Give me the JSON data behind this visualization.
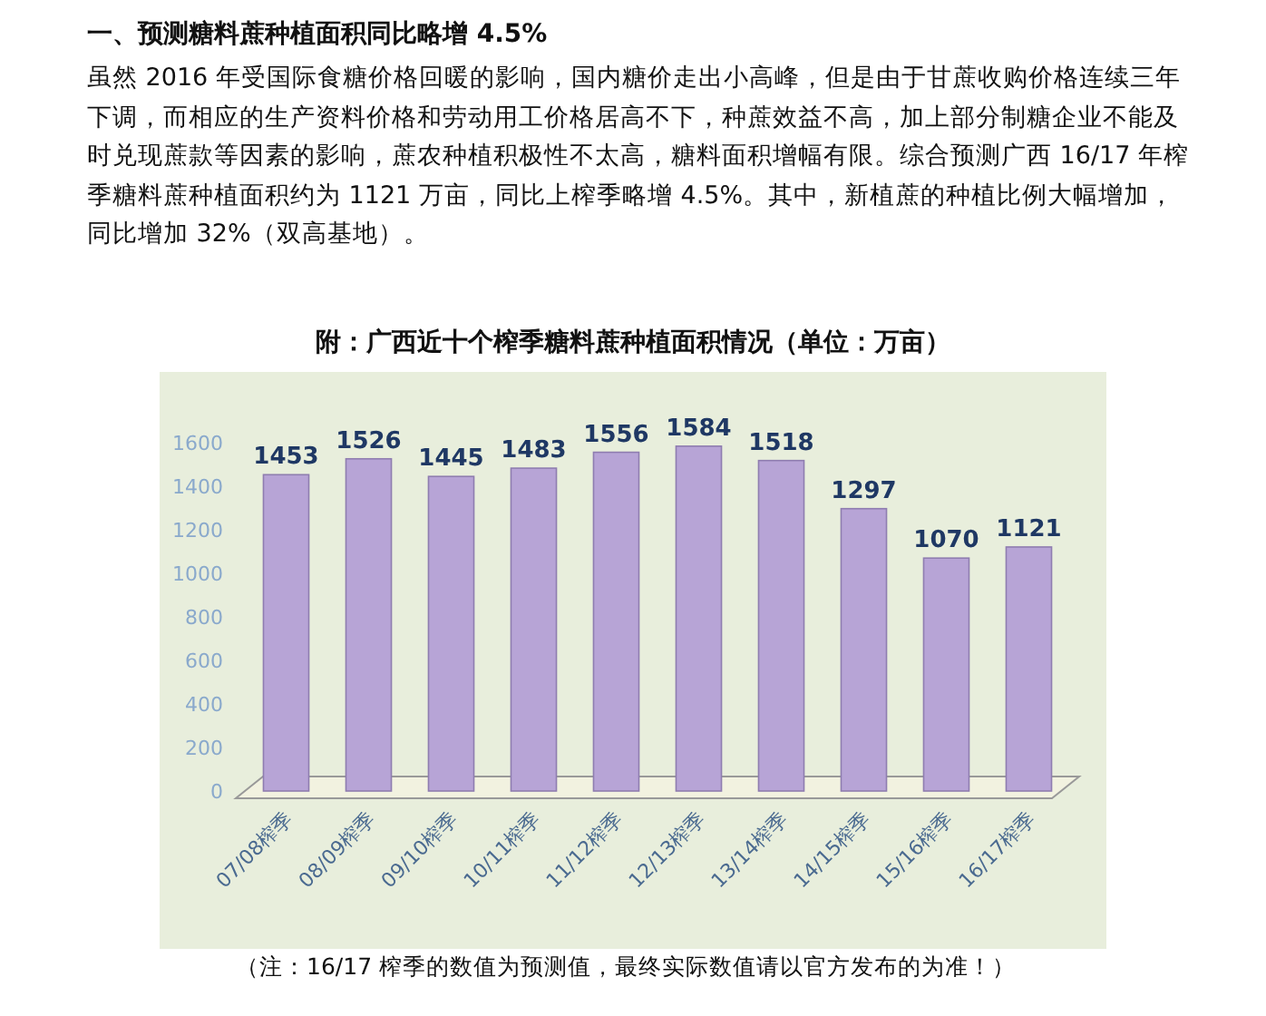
{
  "chart_data": {
    "type": "bar",
    "title": "附：广西近十个榨季糖料蔗种植面积情况（单位：万亩）",
    "annotations": [
      "一、预测糖料蔗种植面积同比略增 4.5%",
      "虽然 2016 年受国际食糖价格回暖的影响，国内糖价走出小高峰，但是由于甘蔗收购价格连续三年下调，而相应的生产资料价格和劳动用工价格居高不下，种蔗效益不高，加上部分制糖企业不能及时兑现蔗款等因素的影响，蔗农种植积极性不太高，糖料面积增幅有限。综合预测广西 16/17 年榨季糖料蔗种植面积约为 1121 万亩，同比上榨季略增 4.5%。其中，新植蔗的种植比例大幅增加，同比增加 32%（双高基地）。",
      "（注：16/17 榨季的数值为预测值，最终实际数值请以官方发布的为准！）"
    ],
    "categories": [
      "07/08榨季",
      "08/09榨季",
      "09/10榨季",
      "10/11榨季",
      "11/12榨季",
      "12/13榨季",
      "13/14榨季",
      "14/15榨季",
      "15/16榨季",
      "16/17榨季"
    ],
    "values": [
      1453,
      1526,
      1445,
      1483,
      1556,
      1584,
      1518,
      1297,
      1070,
      1121
    ],
    "color": "#b7a4d6",
    "ylim": [
      0,
      1600
    ],
    "yticks": [
      0,
      200,
      400,
      600,
      800,
      1000,
      1200,
      1400,
      1600
    ],
    "data_labels": true,
    "grid": false
  }
}
